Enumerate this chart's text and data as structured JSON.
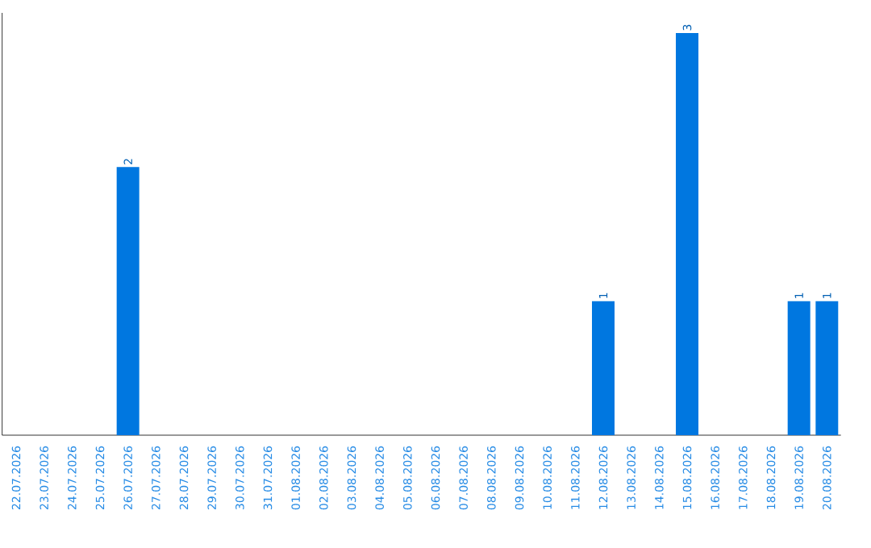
{
  "chart_data": {
    "type": "bar",
    "categories": [
      "22.07.2026",
      "23.07.2026",
      "24.07.2026",
      "25.07.2026",
      "26.07.2026",
      "27.07.2026",
      "28.07.2026",
      "29.07.2026",
      "30.07.2026",
      "31.07.2026",
      "01.08.2026",
      "02.08.2026",
      "03.08.2026",
      "04.08.2026",
      "05.08.2026",
      "06.08.2026",
      "07.08.2026",
      "08.08.2026",
      "09.08.2026",
      "10.08.2026",
      "11.08.2026",
      "12.08.2026",
      "13.08.2026",
      "14.08.2026",
      "15.08.2026",
      "16.08.2026",
      "17.08.2026",
      "18.08.2026",
      "19.08.2026",
      "20.08.2026"
    ],
    "values": [
      0,
      0,
      0,
      0,
      2,
      0,
      0,
      0,
      0,
      0,
      0,
      0,
      0,
      0,
      0,
      0,
      0,
      0,
      0,
      0,
      0,
      1,
      0,
      0,
      3,
      0,
      0,
      0,
      1,
      1
    ],
    "value_labels": [
      null,
      null,
      null,
      null,
      "2",
      null,
      null,
      null,
      null,
      null,
      null,
      null,
      null,
      null,
      null,
      null,
      null,
      null,
      null,
      null,
      null,
      "1",
      null,
      null,
      "3",
      null,
      null,
      null,
      "1",
      "1"
    ],
    "color": "#0077e0"
  }
}
